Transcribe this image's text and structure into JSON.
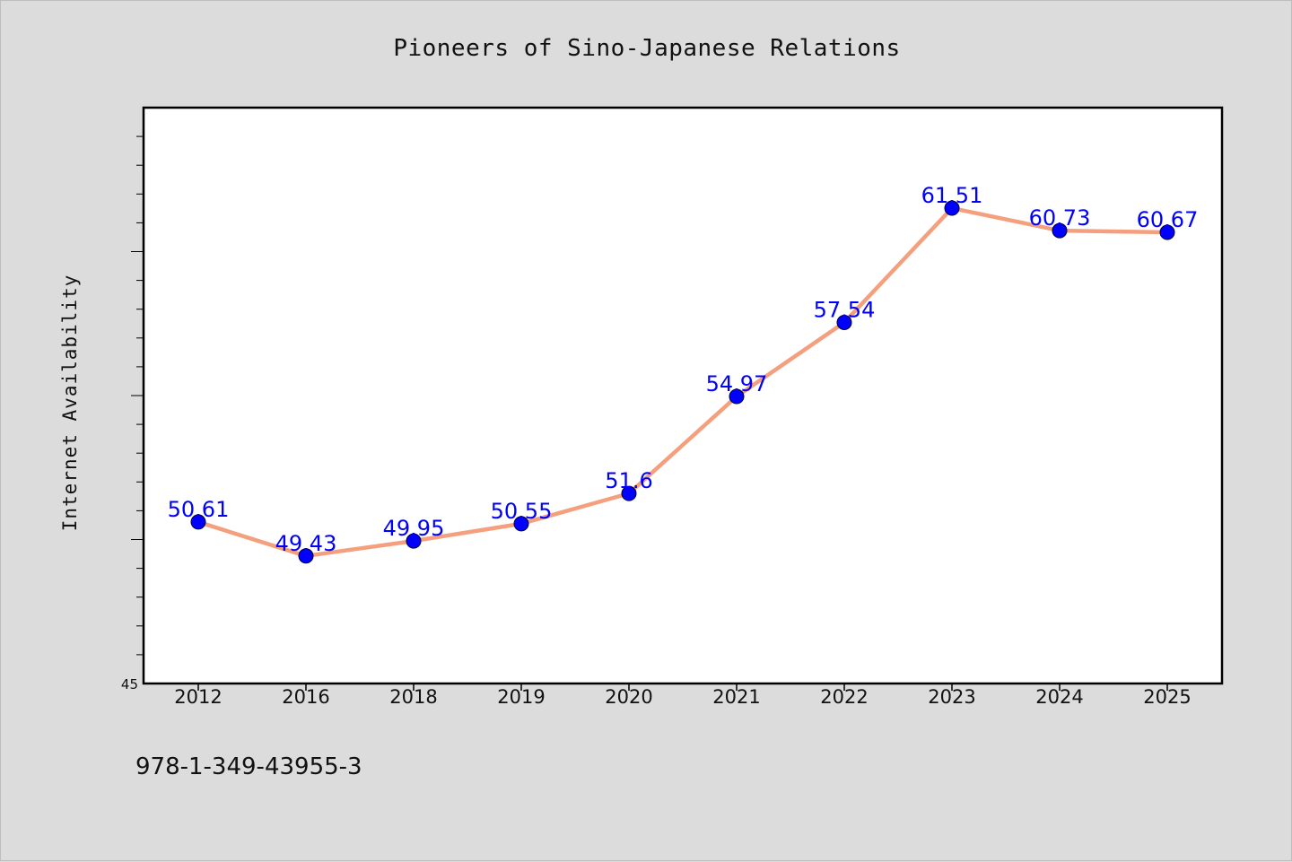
{
  "chart_data": {
    "type": "line",
    "title": "Pioneers of Sino-Japanese Relations",
    "ylabel": "Internet Availability",
    "xlabel": "",
    "categories": [
      "2012",
      "2016",
      "2018",
      "2019",
      "2020",
      "2021",
      "2022",
      "2023",
      "2024",
      "2025"
    ],
    "values": [
      50.61,
      49.43,
      49.95,
      50.55,
      51.6,
      54.97,
      57.54,
      61.51,
      60.73,
      60.67
    ],
    "data_labels": [
      "50.61",
      "49.43",
      "49.95",
      "50.55",
      "51.6",
      "54.97",
      "57.54",
      "61.51",
      "60.73",
      "60.67"
    ],
    "ylim": [
      45,
      65
    ],
    "ytick_labels": [
      "45"
    ],
    "grid": false,
    "legend": "none",
    "line_color": "#f4a07e",
    "marker_color": "#0000ff",
    "label_color": "#0000ff"
  },
  "footnote": "978-1-349-43955-3"
}
